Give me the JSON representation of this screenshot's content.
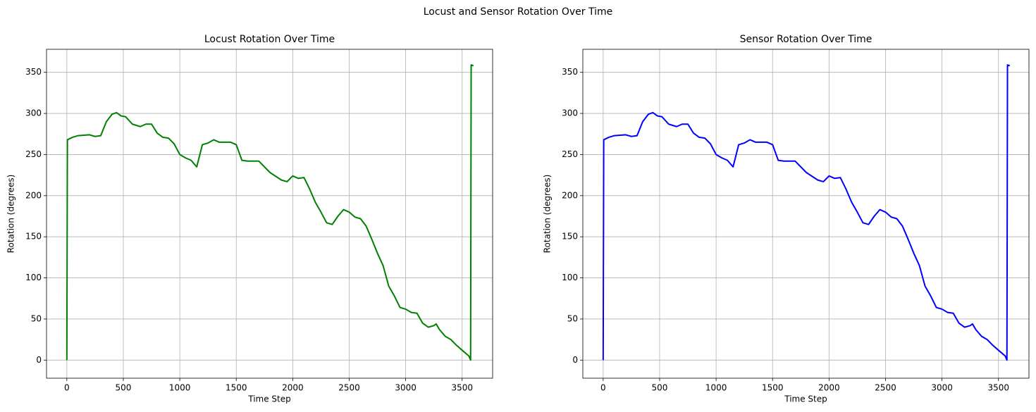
{
  "title": "Locust and Sensor Rotation Over Time",
  "chart_data": [
    {
      "type": "line",
      "title": "Locust Rotation Over Time",
      "x_label": "Time Step",
      "y_label": "Rotation (degrees)",
      "color": "#008000",
      "grid": true,
      "x": [
        0,
        5,
        50,
        100,
        200,
        250,
        300,
        350,
        400,
        440,
        480,
        520,
        580,
        650,
        700,
        750,
        800,
        850,
        900,
        950,
        1000,
        1050,
        1100,
        1150,
        1200,
        1250,
        1300,
        1350,
        1450,
        1500,
        1550,
        1600,
        1700,
        1800,
        1900,
        1950,
        2000,
        2050,
        2100,
        2150,
        2200,
        2250,
        2300,
        2350,
        2400,
        2450,
        2500,
        2550,
        2600,
        2650,
        2700,
        2750,
        2800,
        2850,
        2900,
        2950,
        3000,
        3050,
        3100,
        3150,
        3200,
        3250,
        3270,
        3300,
        3350,
        3400,
        3450,
        3500,
        3560,
        3575,
        3580,
        3600
      ],
      "values": [
        0,
        268,
        271,
        273,
        274,
        272,
        273,
        290,
        299,
        301,
        297,
        296,
        287,
        284,
        287,
        287,
        276,
        271,
        270,
        263,
        250,
        246,
        243,
        235,
        262,
        264,
        268,
        265,
        265,
        262,
        243,
        242,
        242,
        228,
        219,
        217,
        224,
        221,
        222,
        208,
        192,
        180,
        167,
        165,
        175,
        183,
        180,
        174,
        172,
        163,
        147,
        130,
        115,
        90,
        78,
        64,
        62,
        58,
        57,
        45,
        40,
        42,
        44,
        37,
        29,
        25,
        18,
        12,
        5,
        0,
        359,
        358
      ],
      "xlim": [
        -180,
        3770
      ],
      "ylim": [
        -22,
        378
      ],
      "xticks": [
        0,
        500,
        1000,
        1500,
        2000,
        2500,
        3000,
        3500
      ],
      "yticks": [
        0,
        50,
        100,
        150,
        200,
        250,
        300,
        350
      ]
    },
    {
      "type": "line",
      "title": "Sensor Rotation Over Time",
      "x_label": "Time Step",
      "y_label": "Rotation (degrees)",
      "color": "#0000ff",
      "grid": true,
      "x": [
        0,
        5,
        50,
        100,
        200,
        250,
        300,
        350,
        400,
        440,
        480,
        520,
        580,
        650,
        700,
        750,
        800,
        850,
        900,
        950,
        1000,
        1050,
        1100,
        1150,
        1200,
        1250,
        1300,
        1350,
        1450,
        1500,
        1550,
        1600,
        1700,
        1800,
        1900,
        1950,
        2000,
        2050,
        2100,
        2150,
        2200,
        2250,
        2300,
        2350,
        2400,
        2450,
        2500,
        2550,
        2600,
        2650,
        2700,
        2750,
        2800,
        2850,
        2900,
        2950,
        3000,
        3050,
        3100,
        3150,
        3200,
        3250,
        3270,
        3300,
        3350,
        3400,
        3450,
        3500,
        3560,
        3575,
        3580,
        3600
      ],
      "values": [
        0,
        268,
        271,
        273,
        274,
        272,
        273,
        290,
        299,
        301,
        297,
        296,
        287,
        284,
        287,
        287,
        276,
        271,
        270,
        263,
        250,
        246,
        243,
        235,
        262,
        264,
        268,
        265,
        265,
        262,
        243,
        242,
        242,
        228,
        219,
        217,
        224,
        221,
        222,
        208,
        192,
        180,
        167,
        165,
        175,
        183,
        180,
        174,
        172,
        163,
        147,
        130,
        115,
        90,
        78,
        64,
        62,
        58,
        57,
        45,
        40,
        42,
        44,
        37,
        29,
        25,
        18,
        12,
        5,
        0,
        359,
        358
      ],
      "xlim": [
        -180,
        3770
      ],
      "ylim": [
        -22,
        378
      ],
      "xticks": [
        0,
        500,
        1000,
        1500,
        2000,
        2500,
        3000,
        3500
      ],
      "yticks": [
        0,
        50,
        100,
        150,
        200,
        250,
        300,
        350
      ]
    }
  ]
}
